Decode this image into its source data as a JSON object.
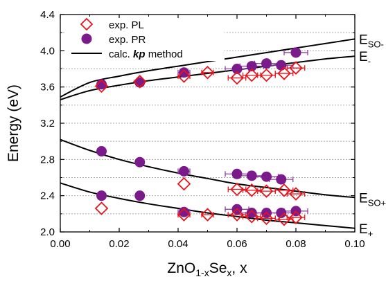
{
  "chart_data": {
    "type": "scatter",
    "xlabel_main": "ZnO",
    "xlabel_sub1": "1-x",
    "xlabel_mid": "Se",
    "xlabel_sub2": "x",
    "xlabel_tail": ", x",
    "ylabel": "Energy (eV)",
    "xlim": [
      0.0,
      0.1
    ],
    "ylim": [
      2.0,
      4.4
    ],
    "xticks": [
      0.0,
      0.02,
      0.04,
      0.06,
      0.08,
      0.1
    ],
    "xtick_labels": [
      "0.00",
      "0.02",
      "0.04",
      "0.06",
      "0.08",
      "0.10"
    ],
    "yticks": [
      2.0,
      2.4,
      2.8,
      3.2,
      3.6,
      4.0,
      4.4
    ],
    "ytick_labels": [
      "2.0",
      "2.4",
      "2.8",
      "3.2",
      "3.6",
      "4.0",
      "4.4"
    ],
    "ygrid_dashed": [
      2.2,
      2.4,
      2.6,
      2.8,
      3.0,
      3.2,
      3.4,
      3.6,
      3.8,
      4.0,
      4.2
    ],
    "legend": {
      "placement": "top-left",
      "entries": [
        {
          "key": "pl",
          "label": "exp. PL"
        },
        {
          "key": "pr",
          "label": "exp. PR"
        },
        {
          "key": "calc",
          "label_pre": "calc. ",
          "label_bold": "kp",
          "label_post": "  method"
        }
      ]
    },
    "colors": {
      "pl": "#e8141c",
      "pr": "#7b1a8a",
      "calc": "#000000",
      "grid": "#aaaaaa",
      "errbar_pl": "#e8141c",
      "errbar_pr": "#8d3fa3"
    },
    "series": [
      {
        "name": "exp. PL",
        "marker": "open-diamond",
        "points": [
          {
            "x": 0.014,
            "y": 3.61
          },
          {
            "x": 0.027,
            "y": 3.66
          },
          {
            "x": 0.042,
            "y": 3.72
          },
          {
            "x": 0.05,
            "y": 3.76
          },
          {
            "x": 0.06,
            "y": 3.7
          },
          {
            "x": 0.065,
            "y": 3.73
          },
          {
            "x": 0.07,
            "y": 3.73
          },
          {
            "x": 0.076,
            "y": 3.75
          },
          {
            "x": 0.08,
            "y": 3.81
          },
          {
            "x": 0.042,
            "y": 2.53
          },
          {
            "x": 0.06,
            "y": 2.47
          },
          {
            "x": 0.065,
            "y": 2.46
          },
          {
            "x": 0.07,
            "y": 2.45
          },
          {
            "x": 0.076,
            "y": 2.46
          },
          {
            "x": 0.08,
            "y": 2.42
          },
          {
            "x": 0.014,
            "y": 2.26
          },
          {
            "x": 0.042,
            "y": 2.19
          },
          {
            "x": 0.05,
            "y": 2.19
          },
          {
            "x": 0.06,
            "y": 2.19
          },
          {
            "x": 0.065,
            "y": 2.17
          },
          {
            "x": 0.07,
            "y": 2.15
          },
          {
            "x": 0.076,
            "y": 2.14
          },
          {
            "x": 0.08,
            "y": 2.16
          }
        ],
        "xerr": [
          0,
          0,
          0.002,
          0.002,
          0.003,
          0.003,
          0.003,
          0.003,
          0.003,
          0,
          0.003,
          0.003,
          0.003,
          0.003,
          0.003,
          0,
          0.002,
          0.002,
          0.003,
          0.003,
          0.003,
          0.003,
          0.003
        ]
      },
      {
        "name": "exp. PR",
        "marker": "filled-circle",
        "points": [
          {
            "x": 0.014,
            "y": 3.63
          },
          {
            "x": 0.027,
            "y": 3.65
          },
          {
            "x": 0.042,
            "y": 3.76
          },
          {
            "x": 0.06,
            "y": 3.8
          },
          {
            "x": 0.065,
            "y": 3.83
          },
          {
            "x": 0.07,
            "y": 3.86
          },
          {
            "x": 0.075,
            "y": 3.84
          },
          {
            "x": 0.08,
            "y": 3.98
          },
          {
            "x": 0.014,
            "y": 2.89
          },
          {
            "x": 0.027,
            "y": 2.77
          },
          {
            "x": 0.042,
            "y": 2.67
          },
          {
            "x": 0.06,
            "y": 2.64
          },
          {
            "x": 0.065,
            "y": 2.62
          },
          {
            "x": 0.07,
            "y": 2.61
          },
          {
            "x": 0.075,
            "y": 2.58
          },
          {
            "x": 0.014,
            "y": 2.4
          },
          {
            "x": 0.027,
            "y": 2.4
          },
          {
            "x": 0.042,
            "y": 2.22
          },
          {
            "x": 0.06,
            "y": 2.25
          },
          {
            "x": 0.065,
            "y": 2.21
          },
          {
            "x": 0.07,
            "y": 2.21
          },
          {
            "x": 0.075,
            "y": 2.21
          },
          {
            "x": 0.08,
            "y": 2.23
          }
        ],
        "xerr": [
          0,
          0,
          0.002,
          0.004,
          0.004,
          0.004,
          0.004,
          0.004,
          0,
          0,
          0.002,
          0.004,
          0.004,
          0.004,
          0.004,
          0,
          0,
          0.002,
          0.004,
          0.004,
          0.004,
          0.004,
          0.004
        ]
      }
    ],
    "curves": [
      {
        "name": "E_SO-",
        "points": [
          [
            0,
            3.49
          ],
          [
            0.01,
            3.65
          ],
          [
            0.02,
            3.72
          ],
          [
            0.03,
            3.78
          ],
          [
            0.04,
            3.83
          ],
          [
            0.05,
            3.88
          ],
          [
            0.06,
            3.93
          ],
          [
            0.07,
            3.98
          ],
          [
            0.08,
            4.03
          ],
          [
            0.09,
            4.08
          ],
          [
            0.1,
            4.13
          ]
        ]
      },
      {
        "name": "E_-",
        "points": [
          [
            0,
            3.46
          ],
          [
            0.01,
            3.56
          ],
          [
            0.02,
            3.62
          ],
          [
            0.03,
            3.67
          ],
          [
            0.04,
            3.71
          ],
          [
            0.05,
            3.75
          ],
          [
            0.06,
            3.79
          ],
          [
            0.07,
            3.83
          ],
          [
            0.08,
            3.87
          ],
          [
            0.09,
            3.91
          ],
          [
            0.1,
            3.94
          ]
        ]
      },
      {
        "name": "E_SO+",
        "points": [
          [
            0,
            3.02
          ],
          [
            0.01,
            2.9
          ],
          [
            0.02,
            2.8
          ],
          [
            0.03,
            2.72
          ],
          [
            0.04,
            2.65
          ],
          [
            0.05,
            2.59
          ],
          [
            0.06,
            2.53
          ],
          [
            0.07,
            2.49
          ],
          [
            0.08,
            2.45
          ],
          [
            0.09,
            2.41
          ],
          [
            0.1,
            2.38
          ]
        ]
      },
      {
        "name": "E_+",
        "points": [
          [
            0,
            2.54
          ],
          [
            0.01,
            2.44
          ],
          [
            0.02,
            2.37
          ],
          [
            0.03,
            2.31
          ],
          [
            0.04,
            2.26
          ],
          [
            0.05,
            2.21
          ],
          [
            0.06,
            2.17
          ],
          [
            0.07,
            2.13
          ],
          [
            0.08,
            2.1
          ],
          [
            0.09,
            2.07
          ],
          [
            0.1,
            2.04
          ]
        ]
      }
    ],
    "curve_labels": [
      {
        "main": "E",
        "sub": "SO-",
        "y": 4.13
      },
      {
        "main": "E",
        "sub": "-",
        "y": 3.94
      },
      {
        "main": "E",
        "sub": "SO+",
        "y": 2.38
      },
      {
        "main": "E",
        "sub": "+",
        "y": 2.04
      }
    ]
  }
}
